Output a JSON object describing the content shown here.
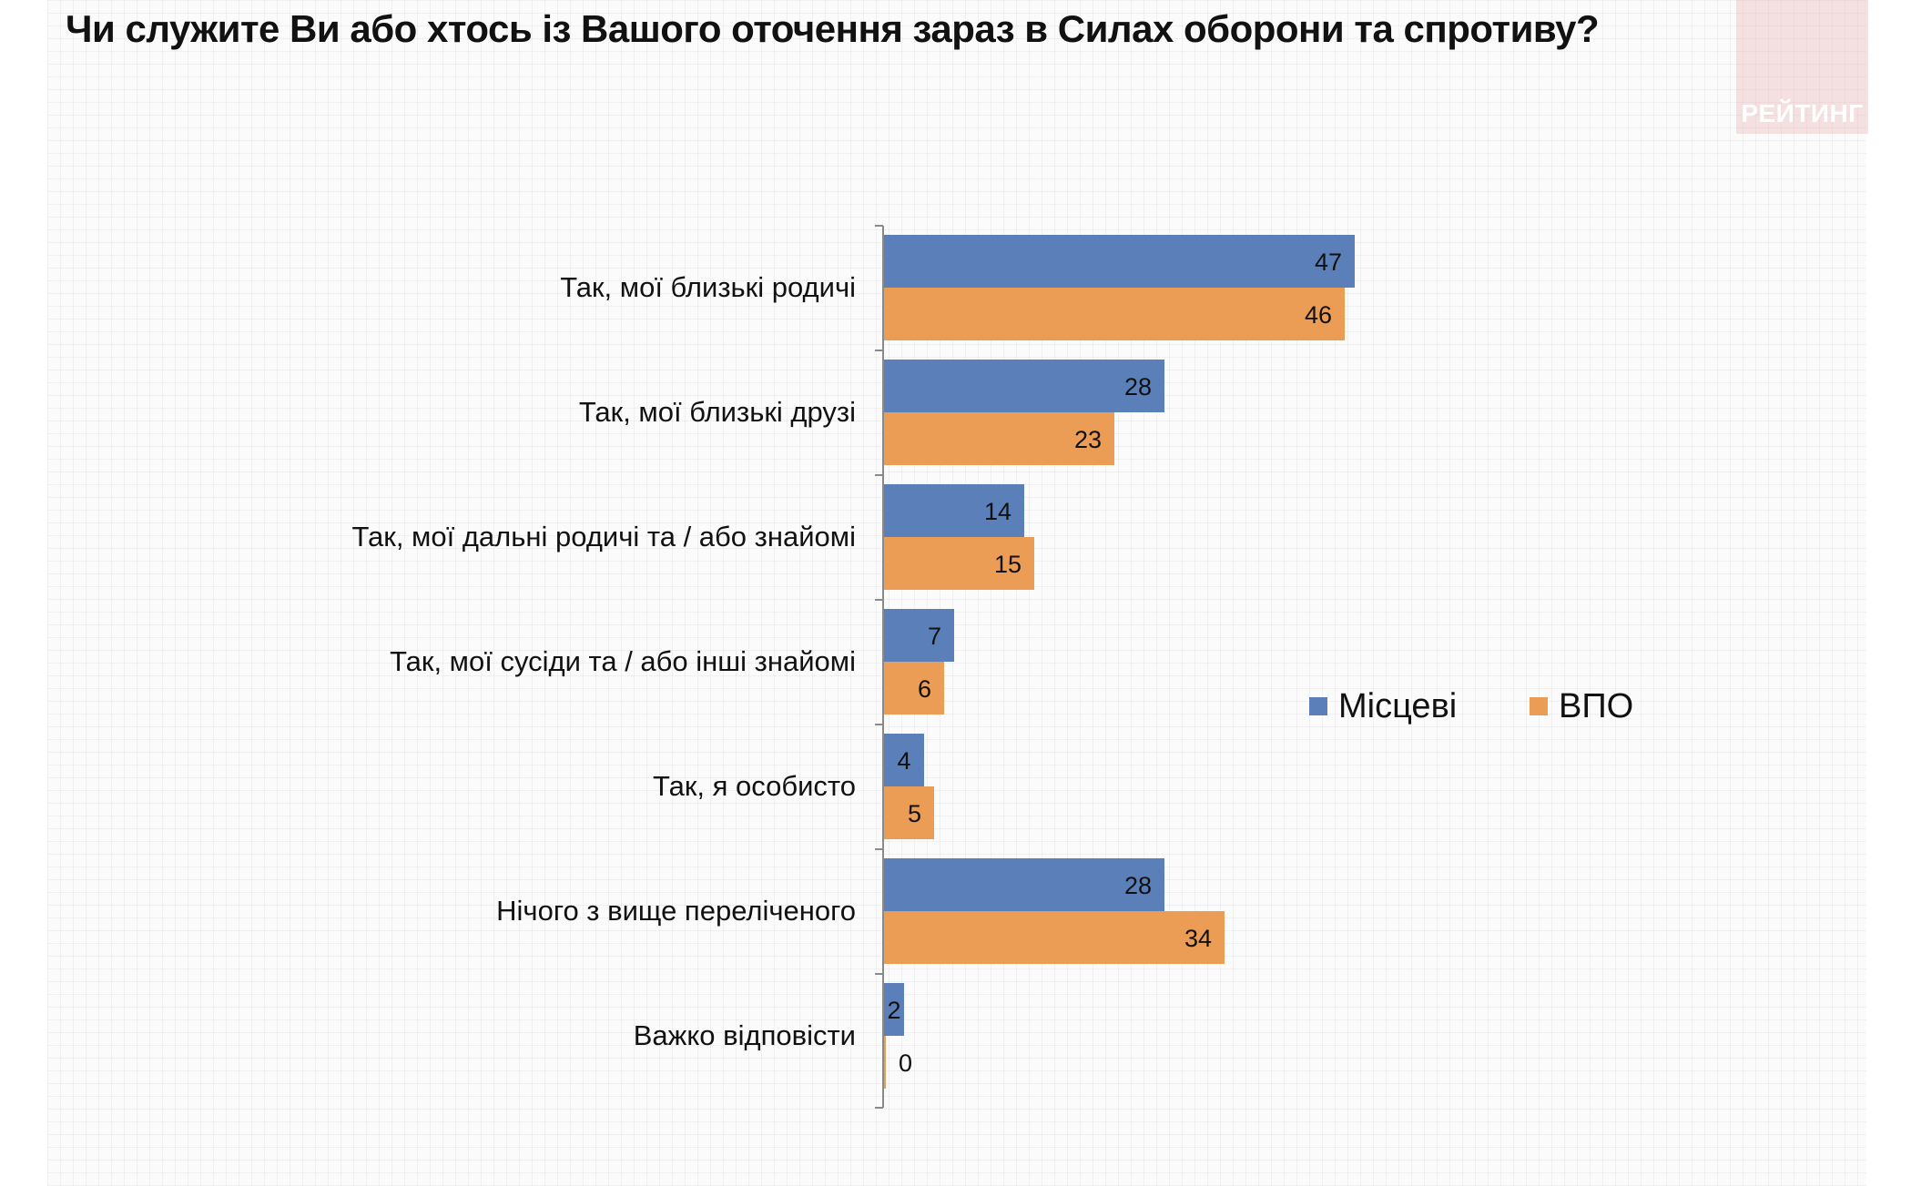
{
  "title": "Чи служите Ви або хтось із Вашого оточення зараз в Силах оборони та спротиву?",
  "brand": {
    "logo_text": "РЕЙТИНГ"
  },
  "colors": {
    "local": "#5b80b9",
    "idp": "#eb9c55"
  },
  "chart_data": {
    "type": "bar",
    "orientation": "horizontal",
    "categories": [
      "Так, мої близькі родичі",
      "Так, мої близькі друзі",
      "Так, мої дальні родичі та / або знайомі",
      "Так, мої сусіди та / або інші знайомі",
      "Так, я особисто",
      "Нічого з вище переліченого",
      "Важко відповісти"
    ],
    "series": [
      {
        "name": "Місцеві",
        "color": "#5b80b9",
        "values": [
          47,
          28,
          14,
          7,
          4,
          28,
          2
        ]
      },
      {
        "name": "ВПО",
        "color": "#eb9c55",
        "values": [
          46,
          23,
          15,
          6,
          5,
          34,
          0
        ]
      }
    ],
    "xlim": [
      0,
      100
    ],
    "grid": false,
    "legend_position": "right",
    "data_labels": true
  }
}
